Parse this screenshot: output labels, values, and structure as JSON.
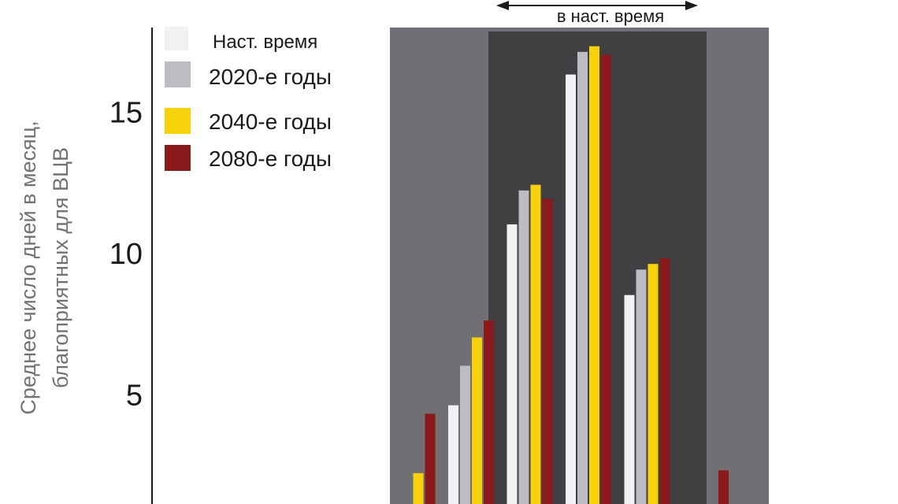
{
  "chart_data": {
    "type": "bar",
    "title": "",
    "xlabel": "",
    "ylabel_line1": "Среднее число дней в месяц,",
    "ylabel_line2": "благоприятных для ВЦВ",
    "y_ticks": [
      5,
      10,
      15
    ],
    "ylim": [
      2,
      18
    ],
    "grid": false,
    "legend_position": "top-left",
    "period_annotation": "в наст. время",
    "categories": [
      "",
      "",
      "",
      "",
      "",
      "",
      "",
      "",
      ""
    ],
    "series": [
      {
        "name": "Наст. время",
        "color": "#f1f1f3",
        "values": [
          0,
          0,
          0,
          0,
          4.6,
          11.0,
          16.3,
          8.5,
          0
        ]
      },
      {
        "name": "2020-е годы",
        "color": "#bcbdc1",
        "values": [
          0,
          0,
          0,
          0,
          6.0,
          12.2,
          17.1,
          9.4,
          0
        ]
      },
      {
        "name": "2040-е годы",
        "color": "#f7d20a",
        "values": [
          0,
          0,
          0,
          2.2,
          7.0,
          12.4,
          17.3,
          9.6,
          0
        ]
      },
      {
        "name": "2080-е годы",
        "color": "#8b1a1d",
        "values": [
          0,
          0,
          0,
          4.3,
          7.6,
          11.9,
          17.0,
          9.8,
          2.3
        ]
      }
    ],
    "colors": {
      "outer_band": "#707074",
      "inner_band": "#404042",
      "axis": "#1a1a1a",
      "text": "#1a1a1a",
      "ylabel": "#727272"
    }
  }
}
